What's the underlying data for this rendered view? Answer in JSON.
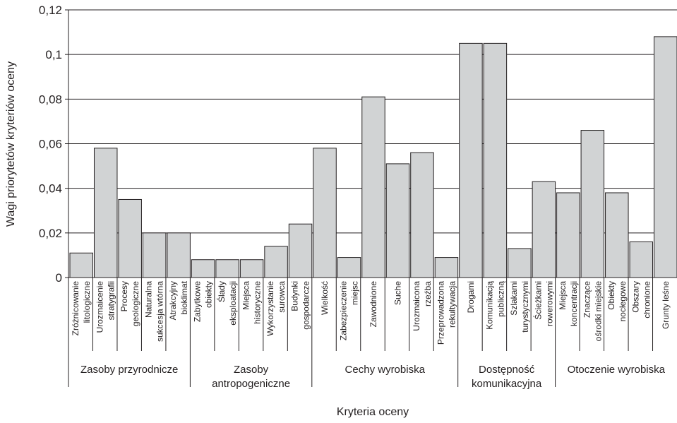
{
  "chart_data": {
    "type": "bar",
    "xlabel": "Kryteria oceny",
    "ylabel": "Wagi priorytetów kryteriów oceny",
    "ylim": [
      0,
      0.12
    ],
    "yticks": [
      "0",
      "0,02",
      "0,04",
      "0,06",
      "0,08",
      "0,1",
      "0,12"
    ],
    "grid": true,
    "bar_color": "#d1d3d4",
    "categories": [
      [
        "Zróżnicowanie",
        "litologiczne"
      ],
      [
        "Urozmaicenie",
        "stratygrafii"
      ],
      [
        "Procesy",
        "geologiczne"
      ],
      [
        "Naturalna",
        "sukcesja wtórna"
      ],
      [
        "Atrakcyjny",
        "bioklimat"
      ],
      [
        "Zabytkowe",
        "obiekty"
      ],
      [
        "Ślady",
        "eksploatacji"
      ],
      [
        "Miejsca",
        "historyczne"
      ],
      [
        "Wykorzystanie",
        "surowca"
      ],
      [
        "Budynki",
        "gospodarcze"
      ],
      [
        "Wielkość"
      ],
      [
        "Zabezpieczenie",
        "miejsc"
      ],
      [
        "Zawodnione"
      ],
      [
        "Suche"
      ],
      [
        "Urozmaicona",
        "rzeźba"
      ],
      [
        "Przeprowadzona",
        "rekultywacja"
      ],
      [
        "Drogami"
      ],
      [
        "Komunikacją",
        "publiczną"
      ],
      [
        "Szlakami",
        "turystycznymi"
      ],
      [
        "Ścieżkami",
        "rowerowymi"
      ],
      [
        "Miejsca",
        "koncentracji"
      ],
      [
        "Znaczące",
        "ośrodki miejskie"
      ],
      [
        "Obiekty",
        "nocłegowe"
      ],
      [
        "Obszary",
        "chronione"
      ],
      [
        "Grunty leśne"
      ]
    ],
    "values": [
      0.011,
      0.058,
      0.035,
      0.02,
      0.02,
      0.008,
      0.008,
      0.008,
      0.014,
      0.024,
      0.058,
      0.009,
      0.081,
      0.051,
      0.056,
      0.009,
      0.105,
      0.105,
      0.013,
      0.043,
      0.038,
      0.066,
      0.038,
      0.016,
      0.108
    ],
    "groups": [
      {
        "label": [
          "Zasoby przyrodnicze"
        ],
        "start": 0,
        "count": 5
      },
      {
        "label": [
          "Zasoby",
          "antropogeniczne"
        ],
        "start": 5,
        "count": 5
      },
      {
        "label": [
          "Cechy wyrobiska"
        ],
        "start": 10,
        "count": 6
      },
      {
        "label": [
          "Dostępność",
          "komunikacyjna"
        ],
        "start": 16,
        "count": 4
      },
      {
        "label": [
          "Otoczenie wyrobiska"
        ],
        "start": 20,
        "count": 5
      }
    ]
  }
}
